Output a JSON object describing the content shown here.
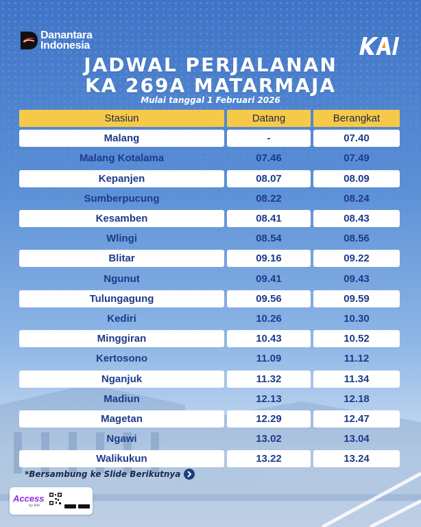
{
  "brand": {
    "left_logo_line1": "Danantara",
    "left_logo_line2": "Indonesia"
  },
  "title": {
    "line1": "JADWAL PERJALANAN",
    "line2": "KA 269A MATARMAJA",
    "subtitle": "Mulai tanggal 1 Februari 2026"
  },
  "table": {
    "headers": [
      "Stasiun",
      "Datang",
      "Berangkat"
    ],
    "rows": [
      {
        "station": "Malang",
        "arrive": "-",
        "depart": "07.40"
      },
      {
        "station": "Malang Kotalama",
        "arrive": "07.46",
        "depart": "07.49"
      },
      {
        "station": "Kepanjen",
        "arrive": "08.07",
        "depart": "08.09"
      },
      {
        "station": "Sumberpucung",
        "arrive": "08.22",
        "depart": "08.24"
      },
      {
        "station": "Kesamben",
        "arrive": "08.41",
        "depart": "08.43"
      },
      {
        "station": "Wlingi",
        "arrive": "08.54",
        "depart": "08.56"
      },
      {
        "station": "Blitar",
        "arrive": "09.16",
        "depart": "09.22"
      },
      {
        "station": "Ngunut",
        "arrive": "09.41",
        "depart": "09.43"
      },
      {
        "station": "Tulungagung",
        "arrive": "09.56",
        "depart": "09.59"
      },
      {
        "station": "Kediri",
        "arrive": "10.26",
        "depart": "10.30"
      },
      {
        "station": "Minggiran",
        "arrive": "10.43",
        "depart": "10.52"
      },
      {
        "station": "Kertosono",
        "arrive": "11.09",
        "depart": "11.12"
      },
      {
        "station": "Nganjuk",
        "arrive": "11.32",
        "depart": "11.34"
      },
      {
        "station": "Madiun",
        "arrive": "12.13",
        "depart": "12.18"
      },
      {
        "station": "Magetan",
        "arrive": "12.29",
        "depart": "12.47"
      },
      {
        "station": "Ngawi",
        "arrive": "13.02",
        "depart": "13.04"
      },
      {
        "station": "Walikukun",
        "arrive": "13.22",
        "depart": "13.24"
      }
    ]
  },
  "footer": {
    "note": "*Bersambung ke Slide Berikutnya",
    "app_name": "Access",
    "app_by": "by KAI"
  },
  "colors": {
    "header_yellow": "#f7c948",
    "row_text_blue": "#1d3b8a",
    "bg_blue": "#3f73c6"
  }
}
